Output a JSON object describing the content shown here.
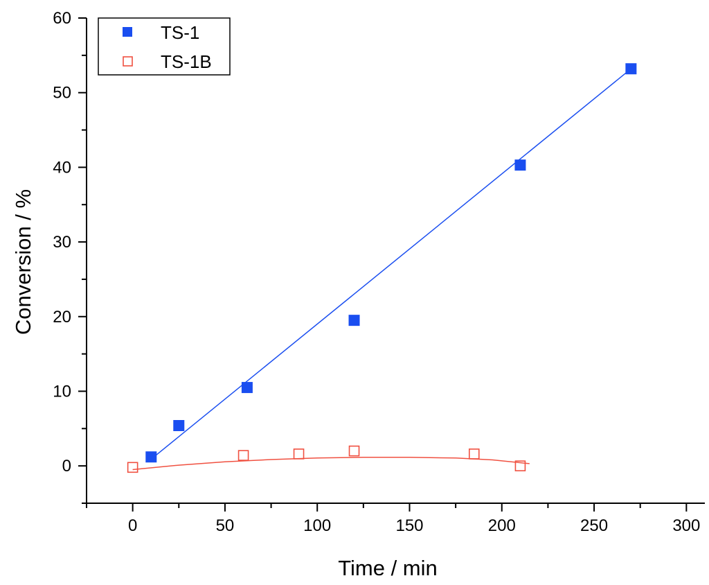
{
  "chart_data": {
    "type": "scatter",
    "xlabel": "Time / min",
    "ylabel": "Conversion / %",
    "xlim": [
      -25,
      310
    ],
    "ylim": [
      -5,
      60
    ],
    "x_ticks": [
      0,
      50,
      100,
      150,
      200,
      250,
      300
    ],
    "y_ticks": [
      0,
      10,
      20,
      30,
      40,
      50,
      60
    ],
    "legend_position": "top-left",
    "grid": false,
    "series": [
      {
        "name": "TS-1",
        "color": "#1a4ef0",
        "marker": "filled-square",
        "x": [
          10,
          25,
          62,
          120,
          210,
          270
        ],
        "y": [
          1.2,
          5.4,
          10.5,
          19.5,
          40.3,
          53.2
        ],
        "fit_line": {
          "x": [
            10,
            272
          ],
          "y": [
            0.9,
            53.6
          ]
        }
      },
      {
        "name": "TS-1B",
        "color": "#f05040",
        "marker": "open-square",
        "x": [
          0,
          60,
          90,
          120,
          185,
          210
        ],
        "y": [
          -0.2,
          1.4,
          1.6,
          2.0,
          1.6,
          0.0
        ],
        "fit_curve": {
          "x": [
            0,
            25,
            50,
            75,
            100,
            125,
            150,
            175,
            195,
            215
          ],
          "y": [
            -0.5,
            0.1,
            0.55,
            0.85,
            1.05,
            1.15,
            1.15,
            1.05,
            0.8,
            0.3
          ]
        }
      }
    ]
  }
}
